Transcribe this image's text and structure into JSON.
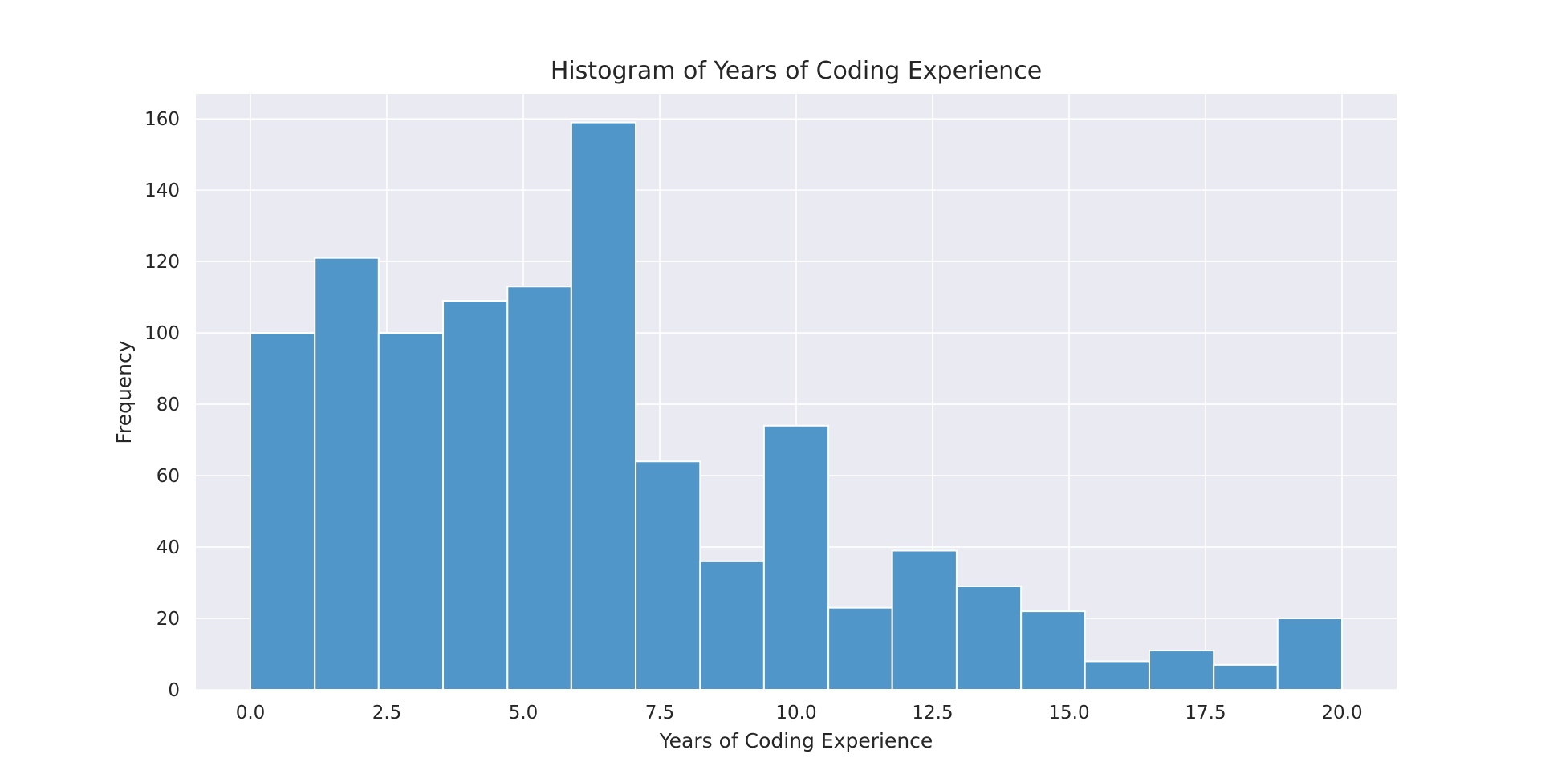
{
  "chart_data": {
    "type": "bar",
    "title": "Histogram of Years of Coding Experience",
    "xlabel": "Years of Coding Experience",
    "ylabel": "Frequency",
    "xlim": [
      -1,
      21
    ],
    "ylim": [
      0,
      167
    ],
    "xticks": [
      {
        "value": 0,
        "label": "0.0"
      },
      {
        "value": 2.5,
        "label": "2.5"
      },
      {
        "value": 5,
        "label": "5.0"
      },
      {
        "value": 7.5,
        "label": "7.5"
      },
      {
        "value": 10,
        "label": "10.0"
      },
      {
        "value": 12.5,
        "label": "12.5"
      },
      {
        "value": 15,
        "label": "15.0"
      },
      {
        "value": 17.5,
        "label": "17.5"
      },
      {
        "value": 20,
        "label": "20.0"
      }
    ],
    "yticks": [
      {
        "value": 0,
        "label": "0"
      },
      {
        "value": 20,
        "label": "20"
      },
      {
        "value": 40,
        "label": "40"
      },
      {
        "value": 60,
        "label": "60"
      },
      {
        "value": 80,
        "label": "80"
      },
      {
        "value": 100,
        "label": "100"
      },
      {
        "value": 120,
        "label": "120"
      },
      {
        "value": 140,
        "label": "140"
      },
      {
        "value": 160,
        "label": "160"
      }
    ],
    "bins": [
      {
        "start": 0.0,
        "end": 1.18,
        "count": 100
      },
      {
        "start": 1.18,
        "end": 2.35,
        "count": 121
      },
      {
        "start": 2.35,
        "end": 3.53,
        "count": 100
      },
      {
        "start": 3.53,
        "end": 4.71,
        "count": 109
      },
      {
        "start": 4.71,
        "end": 5.88,
        "count": 113
      },
      {
        "start": 5.88,
        "end": 7.06,
        "count": 159
      },
      {
        "start": 7.06,
        "end": 8.24,
        "count": 64
      },
      {
        "start": 8.24,
        "end": 9.41,
        "count": 36
      },
      {
        "start": 9.41,
        "end": 10.59,
        "count": 74
      },
      {
        "start": 10.59,
        "end": 11.76,
        "count": 23
      },
      {
        "start": 11.76,
        "end": 12.94,
        "count": 39
      },
      {
        "start": 12.94,
        "end": 14.12,
        "count": 29
      },
      {
        "start": 14.12,
        "end": 15.29,
        "count": 22
      },
      {
        "start": 15.29,
        "end": 16.47,
        "count": 8
      },
      {
        "start": 16.47,
        "end": 17.65,
        "count": 11
      },
      {
        "start": 17.65,
        "end": 18.82,
        "count": 7
      },
      {
        "start": 18.82,
        "end": 20.0,
        "count": 20
      }
    ],
    "grid": true,
    "bar_color": "#5096c8",
    "background_color": "#eaeaf2"
  }
}
